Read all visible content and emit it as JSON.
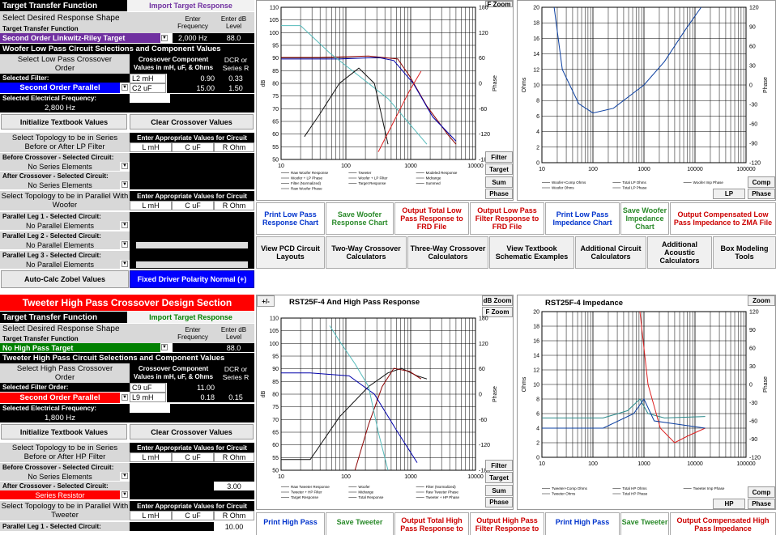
{
  "colors": {
    "accent_red": "#ff0000",
    "accent_blue": "#0000ff",
    "accent_green": "#008000",
    "accent_purple": "#7030a0",
    "navy": "#0033cc"
  },
  "woofer": {
    "ttf_label": "Target Transfer Function",
    "import_btn": "Import Target Response",
    "shape_label": "Select Desired Response Shape",
    "enter_freq": "Enter Frequency",
    "enter_db": "Enter dB Level",
    "ttf_row": "Target Transfer Function",
    "target_value": "Second Order Linkwitz-Riley Target",
    "freq": "2,000 Hz",
    "db": "88.0",
    "section_title": "Woofer Low Pass Circuit Selections and Component Values",
    "select_lp": "Select Low Pass Crossover Order",
    "crossover_comp": "Crossover Component Values in mH, uF, & Ohms",
    "dcr": "DCR or Series R",
    "selected_filter_label": "Selected Filter:",
    "filter_value": "Second Order Parallel",
    "l2": "L2 mH",
    "l2_val": "0.90",
    "l2_dcr": "0.33",
    "c2": "C2  uF",
    "c2_val": "15.00",
    "c2_dcr": "1.50",
    "elec_freq_label": "Selected Electrical Frequency:",
    "elec_freq": "2,800 Hz",
    "init_btn": "Initialize Textbook Values",
    "clear_btn": "Clear Crossover Values",
    "series_topo": "Select Topology to be in Series Before or After LP Filter",
    "enter_values": "Enter Appropriate Values for Circuit",
    "col_l": "L mH",
    "col_c": "C uF",
    "col_r": "R Ohm",
    "before_label": "Before Crossover - Selected Circuit:",
    "before_value": "No Series Elements",
    "after_label": "After Crossover - Selected Circuit:",
    "after_value": "No Series Elements",
    "parallel_topo": "Select Topology to be in Parallel With Woofer",
    "leg1_label": "Parallel Leg 1 - Selected Circuit:",
    "leg1_value": "No Parallel Elements",
    "leg2_label": "Parallel Leg 2 - Selected Circuit:",
    "leg2_value": "No Parallel Elements",
    "leg3_label": "Parallel Leg 3 - Selected Circuit:",
    "leg3_value": "No Parallel Elements",
    "zobel_btn": "Auto-Calc Zobel Values",
    "polarity_btn": "Fixed Driver Polarity Normal (+)"
  },
  "tweeter": {
    "header": "Tweeter High Pass Crossover Design Section",
    "ttf_label": "Target Transfer Function",
    "import_btn": "Import Target Response",
    "shape_label": "Select Desired Response Shape",
    "enter_freq": "Enter Frequency",
    "enter_db": "Enter dB Level",
    "ttf_row": "Target Transfer Function",
    "target_value": "No High Pass Target",
    "db": "88.0",
    "section_title": "Tweeter High Pass Circuit Selections and Component Values",
    "select_hp": "Select High Pass Crossover Order",
    "crossover_comp": "Crossover Component Values in mH, uF, & Ohms",
    "dcr": "DCR or Series R",
    "selected_filter_label": "Selected Filter Order:",
    "filter_value": "Second Order Parallel",
    "c9": "C9  uF",
    "c9_val": "11.00",
    "l9": "L9 mH",
    "l9_val": "0.18",
    "l9_dcr": "0.15",
    "elec_freq_label": "Selected Electrical Frequency:",
    "elec_freq": "1,800 Hz",
    "init_btn": "Initialize Textbook Values",
    "clear_btn": "Clear Crossover Values",
    "series_topo": "Select Topology to be in Series Before or After HP Filter",
    "enter_values": "Enter Appropriate Values for Circuit",
    "col_l": "L mH",
    "col_c": "C uF",
    "col_r": "R Ohm",
    "before_label": "Before Crossover - Selected Circuit:",
    "before_value": "No Series Elements",
    "after_label": "After Crossover - Selected Circuit:",
    "after_value": "Series Resistor",
    "after_r": "3.00",
    "parallel_topo": "Select Topology to be in Parallel With Tweeter",
    "leg1_label": "Parallel Leg 1 - Selected Circuit:",
    "leg1_r": "10.00"
  },
  "charts": {
    "lp_response": {
      "y_left": [
        "110",
        "105",
        "100",
        "95",
        "90",
        "85",
        "80",
        "75",
        "70",
        "65",
        "60",
        "55",
        "50"
      ],
      "y_right": [
        "180",
        "120",
        "60",
        "0",
        "-60",
        "-120",
        "-180"
      ],
      "x": [
        "10",
        "100",
        "1000",
        "10000"
      ],
      "ylabel": "dB",
      "ylabel_r": "Phase",
      "zoom": "F Zoom",
      "legend": [
        "Raw Woofer Response",
        "Tweeter",
        "Modeled Response",
        "Woofer + LP Phase",
        "Woofer + LP Filter",
        "Midrange",
        "Filter (Normalized)",
        "Target Response",
        "Summed",
        "Raw Woofer Phase"
      ],
      "buttons": [
        "Filter",
        "Target",
        "Sum",
        "Phase"
      ]
    },
    "lp_impedance": {
      "y_left": [
        "20",
        "18",
        "16",
        "14",
        "12",
        "10",
        "8",
        "6",
        "4",
        "2",
        "0"
      ],
      "y_right": [
        "120",
        "90",
        "60",
        "30",
        "0",
        "-30",
        "-60",
        "-90",
        "-120"
      ],
      "x": [
        "10",
        "100",
        "1000",
        "10000",
        "100000"
      ],
      "ylabel": "Ohms",
      "ylabel_r": "Phase",
      "legend": [
        "Woofer+Comp Ohms",
        "Total LP Ohms",
        "Woofer Imp Phase",
        "Woofer Ohms",
        "Total LP Phase"
      ],
      "buttons": [
        "Comp",
        "LP",
        "Phase"
      ]
    },
    "hp_response": {
      "title": "RST25F-4  And High Pass Response",
      "y_left": [
        "110",
        "105",
        "100",
        "95",
        "90",
        "85",
        "80",
        "75",
        "70",
        "65",
        "60",
        "55",
        "50"
      ],
      "y_right": [
        "180",
        "120",
        "60",
        "0",
        "-60",
        "-120",
        "-180"
      ],
      "x": [
        "10",
        "100",
        "1000",
        "10000"
      ],
      "ylabel": "dB",
      "ylabel_r": "Phase",
      "zoom_db": "dB Zoom",
      "zoom_f": "F Zoom",
      "plusminus": "+/-",
      "legend": [
        "Raw Tweeter Response",
        "Woofer",
        "Filter (Normalized)",
        "Tweeter + HP Filter",
        "Midrange",
        "Raw Tweeter Phase",
        "Target Response",
        "Total Response",
        "Tweeter + HP Phase"
      ],
      "buttons": [
        "Filter",
        "Target",
        "Sum",
        "Phase"
      ]
    },
    "hp_impedance": {
      "title": "RST25F-4  Impedance",
      "y_left": [
        "20",
        "18",
        "16",
        "14",
        "12",
        "10",
        "8",
        "6",
        "4",
        "2",
        "0"
      ],
      "y_right": [
        "120",
        "90",
        "60",
        "30",
        "0",
        "-30",
        "-60",
        "-90",
        "-120"
      ],
      "x": [
        "10",
        "100",
        "1000",
        "10000",
        "100000"
      ],
      "ylabel": "Ohms",
      "ylabel_r": "Phase",
      "zoom": "Zoom",
      "legend": [
        "Tweeter+Comp Ohms",
        "Total HP Ohms",
        "Tweeter Imp Phase",
        "Tweeter Ohms",
        "Total HP Phase"
      ],
      "buttons": [
        "Comp",
        "HP",
        "Phase"
      ]
    }
  },
  "lp_buttons": [
    "Print Low Pass Response Chart",
    "Save Woofer Response Chart",
    "Output Total  Low Pass Response to FRD  File",
    "Output Low Pass Filter Response to FRD  File",
    "Print Low Pass Impedance Chart",
    "Save Woofer Impedance Chart",
    "Output Compensated Low Pass Impedance to ZMA File"
  ],
  "nav_buttons": [
    "View PCD Circuit Layouts",
    "Two-Way Crossover Calculators",
    "Three-Way Crossover Calculators",
    "View Textbook Schematic Examples",
    "Additional Circuit Calculators",
    "Additional Acoustic Calculators",
    "Box Modeling Tools"
  ],
  "hp_buttons": [
    "Print High Pass",
    "Save Tweeter",
    "Output Total High Pass Response to",
    "Output High Pass Filter Response to",
    "Print High Pass",
    "Save Tweeter",
    "Output Compensated High Pass Impedance"
  ]
}
